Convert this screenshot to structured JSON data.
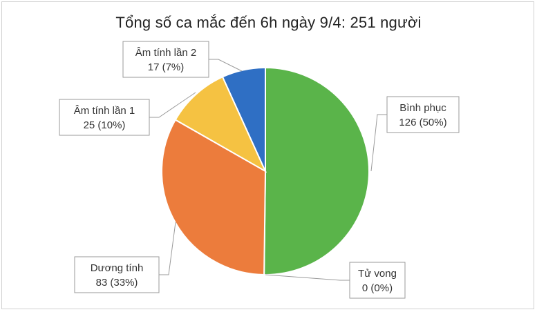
{
  "chart_data": {
    "type": "pie",
    "title": "Tổng số ca mắc đến 6h ngày 9/4: 251 người",
    "slices": [
      {
        "label": "Bình phục",
        "value": 126,
        "percent": "50%",
        "color": "#5ab44a"
      },
      {
        "label": "Tử vong",
        "value": 0,
        "percent": "0%",
        "color": "#a5a5a5"
      },
      {
        "label": "Dương tính",
        "value": 83,
        "percent": "33%",
        "color": "#ec7c3c"
      },
      {
        "label": "Âm tính lần 1",
        "value": 25,
        "percent": "10%",
        "color": "#f5c242"
      },
      {
        "label": "Âm tính lần 2",
        "value": 17,
        "percent": "7%",
        "color": "#2f6fc4"
      }
    ]
  }
}
